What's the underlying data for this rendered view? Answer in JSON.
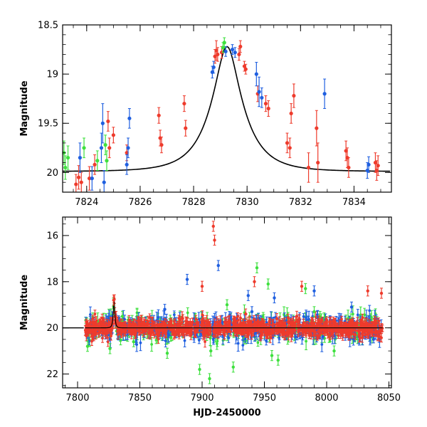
{
  "colors": {
    "red": "#ee3b2c",
    "blue": "#1f5fe0",
    "green": "#3ee03e",
    "model": "#000000"
  },
  "chart_data": [
    {
      "id": "top",
      "type": "scatter",
      "title": "",
      "xlabel": "",
      "ylabel": "Magnitude",
      "xlim": [
        7823.1,
        7835.4
      ],
      "ylim": [
        20.2,
        18.5
      ],
      "y_inverted": true,
      "xticks": [
        7824,
        7826,
        7828,
        7830,
        7832,
        7834
      ],
      "yticks": [
        18.5,
        19,
        19.5,
        20
      ],
      "yticklabels": [
        "18.5",
        "19",
        "19.5",
        "20"
      ],
      "model_curve": {
        "baseline": 19.99,
        "peak": 18.72,
        "t0": 7829.25,
        "tE": 1.2
      },
      "series": [
        {
          "color": "red",
          "points": [
            [
              7823.6,
              20.12,
              0.1
            ],
            [
              7823.7,
              20.05,
              0.12
            ],
            [
              7823.8,
              20.1,
              0.1
            ],
            [
              7824.1,
              20.06,
              0.12
            ],
            [
              7824.3,
              19.92,
              0.1
            ],
            [
              7824.8,
              19.48,
              0.1
            ],
            [
              7824.85,
              19.75,
              0.1
            ],
            [
              7825.0,
              19.62,
              0.08
            ],
            [
              7825.5,
              19.8,
              0.08
            ],
            [
              7826.7,
              19.42,
              0.08
            ],
            [
              7826.75,
              19.65,
              0.08
            ],
            [
              7826.8,
              19.72,
              0.08
            ],
            [
              7827.65,
              19.3,
              0.08
            ],
            [
              7827.7,
              19.55,
              0.08
            ],
            [
              7828.8,
              18.82,
              0.07
            ],
            [
              7828.85,
              18.76,
              0.1
            ],
            [
              7828.9,
              18.8,
              0.07
            ],
            [
              7829.05,
              18.78,
              0.06
            ],
            [
              7829.7,
              18.8,
              0.06
            ],
            [
              7829.75,
              18.72,
              0.06
            ],
            [
              7829.9,
              18.92,
              0.05
            ],
            [
              7829.95,
              18.95,
              0.05
            ],
            [
              7830.4,
              19.2,
              0.08
            ],
            [
              7830.7,
              19.3,
              0.08
            ],
            [
              7830.8,
              19.35,
              0.08
            ],
            [
              7831.5,
              19.7,
              0.1
            ],
            [
              7831.6,
              19.75,
              0.1
            ],
            [
              7831.65,
              19.4,
              0.1
            ],
            [
              7831.75,
              19.22,
              0.12
            ],
            [
              7832.3,
              19.95,
              0.15
            ],
            [
              7832.6,
              19.55,
              0.18
            ],
            [
              7832.65,
              19.9,
              0.2
            ],
            [
              7833.7,
              19.78,
              0.1
            ],
            [
              7833.75,
              19.85,
              0.1
            ],
            [
              7833.8,
              19.95,
              0.1
            ],
            [
              7834.8,
              19.9,
              0.1
            ],
            [
              7834.85,
              19.98,
              0.1
            ],
            [
              7834.9,
              19.93,
              0.1
            ]
          ]
        },
        {
          "color": "blue",
          "points": [
            [
              7823.75,
              19.85,
              0.15
            ],
            [
              7824.2,
              20.06,
              0.12
            ],
            [
              7824.55,
              19.75,
              0.15
            ],
            [
              7824.6,
              19.5,
              0.2
            ],
            [
              7824.65,
              20.1,
              0.12
            ],
            [
              7825.5,
              19.92,
              0.1
            ],
            [
              7825.55,
              19.75,
              0.1
            ],
            [
              7825.6,
              19.45,
              0.1
            ],
            [
              7828.7,
              18.98,
              0.06
            ],
            [
              7828.75,
              18.93,
              0.06
            ],
            [
              7829.2,
              18.77,
              0.05
            ],
            [
              7829.45,
              18.75,
              0.05
            ],
            [
              7829.55,
              18.78,
              0.05
            ],
            [
              7830.35,
              19.0,
              0.12
            ],
            [
              7830.45,
              19.18,
              0.15
            ],
            [
              7830.55,
              19.24,
              0.1
            ],
            [
              7832.9,
              19.2,
              0.15
            ],
            [
              7834.5,
              19.98,
              0.08
            ],
            [
              7834.55,
              19.92,
              0.08
            ]
          ]
        },
        {
          "color": "green",
          "points": [
            [
              7823.15,
              19.8,
              0.12
            ],
            [
              7823.2,
              19.95,
              0.12
            ],
            [
              7823.3,
              19.85,
              0.12
            ],
            [
              7823.9,
              19.75,
              0.1
            ],
            [
              7824.4,
              19.88,
              0.1
            ],
            [
              7824.7,
              19.72,
              0.1
            ],
            [
              7824.75,
              19.88,
              0.1
            ],
            [
              7829.1,
              18.73,
              0.05
            ],
            [
              7829.15,
              18.68,
              0.05
            ]
          ]
        }
      ]
    },
    {
      "id": "bottom",
      "type": "scatter",
      "title": "",
      "xlabel": "HJD-2450000",
      "ylabel": "Magnitude",
      "xlim": [
        7788,
        8052
      ],
      "ylim": [
        22.6,
        15.2
      ],
      "y_inverted": true,
      "xticks": [
        7800,
        7850,
        7900,
        7950,
        8000,
        8050
      ],
      "yticks": [
        16,
        18,
        20,
        22
      ],
      "baseline": 20.0,
      "baseline_range": [
        7788,
        7805
      ],
      "dense_band": {
        "x_start": 7806,
        "x_end": 8045,
        "center": 20.0,
        "spread": 0.18
      },
      "peak": {
        "t0": 7829.25,
        "tE": 1.2,
        "peak": 18.72
      },
      "outliers": {
        "red": [
          [
            7829,
            18.8
          ],
          [
            7909,
            15.6
          ],
          [
            7910,
            16.2
          ],
          [
            7900,
            18.2
          ],
          [
            7935,
            19.4
          ],
          [
            7942,
            18.0
          ],
          [
            7980,
            18.2
          ],
          [
            8033,
            18.4
          ],
          [
            8044,
            18.5
          ],
          [
            7976,
            19.5
          ],
          [
            7960,
            19.6
          ]
        ],
        "blue": [
          [
            7888,
            17.9
          ],
          [
            7913,
            17.3
          ],
          [
            7937,
            18.6
          ],
          [
            7958,
            18.7
          ],
          [
            7990,
            18.4
          ],
          [
            7940,
            19.3
          ],
          [
            8020,
            19.1
          ],
          [
            7870,
            19.2
          ]
        ],
        "green": [
          [
            7898,
            21.8
          ],
          [
            7906,
            22.2
          ],
          [
            7925,
            21.7
          ],
          [
            7944,
            17.4
          ],
          [
            7953,
            18.1
          ],
          [
            7961,
            21.4
          ],
          [
            7983,
            18.3
          ],
          [
            7990,
            19.3
          ],
          [
            7920,
            19.0
          ],
          [
            7907,
            21.0
          ],
          [
            7956,
            21.2
          ],
          [
            8006,
            21.0
          ],
          [
            7872,
            21.1
          ],
          [
            7836,
            19.5
          ],
          [
            7845,
            20.6
          ],
          [
            7808,
            20.8
          ],
          [
            7826,
            20.9
          ]
        ]
      }
    }
  ]
}
